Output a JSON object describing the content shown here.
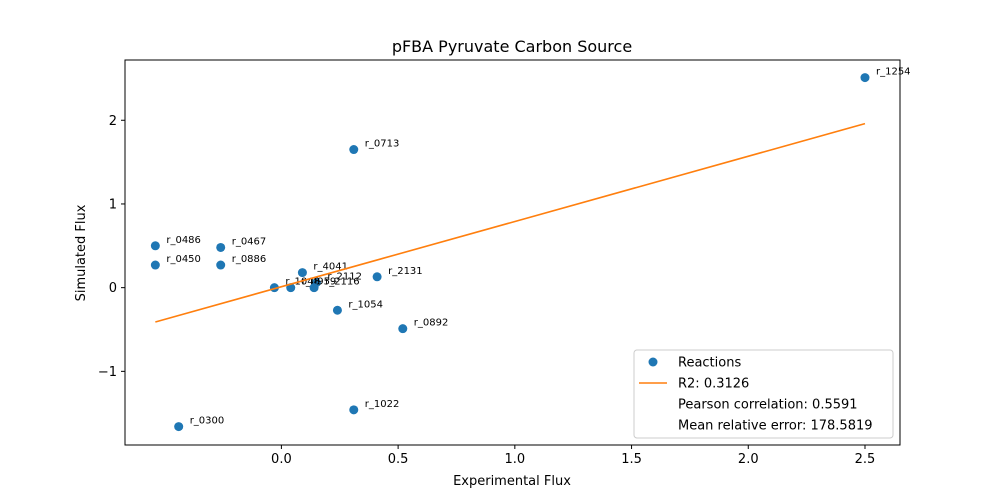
{
  "chart_data": {
    "type": "scatter",
    "title": "pFBA Pyruvate Carbon Source",
    "xlabel": "Experimental Flux",
    "ylabel": "Simulated Flux",
    "xlim": [
      -0.67,
      2.65
    ],
    "ylim": [
      -1.88,
      2.72
    ],
    "xticks": [
      0.0,
      0.5,
      1.0,
      1.5,
      2.0,
      2.5
    ],
    "xtick_labels": [
      "0.0",
      "0.5",
      "1.0",
      "1.5",
      "2.0",
      "2.5"
    ],
    "yticks": [
      -1,
      0,
      1,
      2
    ],
    "ytick_labels": [
      "−1",
      "0",
      "1",
      "2"
    ],
    "grid": false,
    "series": [
      {
        "name": "Reactions",
        "marker": "circle",
        "color": "#1f77b4",
        "points": [
          {
            "label": "r_1254",
            "x": 2.5,
            "y": 2.51
          },
          {
            "label": "r_0713",
            "x": 0.31,
            "y": 1.65
          },
          {
            "label": "r_0486",
            "x": -0.54,
            "y": 0.5
          },
          {
            "label": "r_0467",
            "x": -0.26,
            "y": 0.48
          },
          {
            "label": "r_0450",
            "x": -0.54,
            "y": 0.27
          },
          {
            "label": "r_0886",
            "x": -0.26,
            "y": 0.27
          },
          {
            "label": "r_4041",
            "x": 0.09,
            "y": 0.18
          },
          {
            "label": "r_2112",
            "x": 0.15,
            "y": 0.06
          },
          {
            "label": "r_2131",
            "x": 0.41,
            "y": 0.13
          },
          {
            "label": "r_1048",
            "x": -0.03,
            "y": 0.0
          },
          {
            "label": "r_0959",
            "x": 0.04,
            "y": 0.0
          },
          {
            "label": "r_2116",
            "x": 0.14,
            "y": 0.0
          },
          {
            "label": "r_1054",
            "x": 0.24,
            "y": -0.27
          },
          {
            "label": "r_0892",
            "x": 0.52,
            "y": -0.49
          },
          {
            "label": "r_1022",
            "x": 0.31,
            "y": -1.46
          },
          {
            "label": "r_0300",
            "x": -0.44,
            "y": -1.66
          }
        ]
      },
      {
        "name": "R2: 0.3126",
        "type": "line",
        "color": "#ff7f0e",
        "points": [
          {
            "x": -0.54,
            "y": -0.41
          },
          {
            "x": 2.5,
            "y": 1.96
          }
        ]
      }
    ],
    "legend": {
      "position": "lower-right",
      "entries": [
        {
          "text": "Reactions",
          "marker": "circle",
          "color": "#1f77b4"
        },
        {
          "text": "R2: 0.3126",
          "marker": "line",
          "color": "#ff7f0e"
        },
        {
          "text": "Pearson correlation: 0.5591",
          "marker": "none"
        },
        {
          "text": "Mean relative error: 178.5819",
          "marker": "none"
        }
      ]
    }
  }
}
